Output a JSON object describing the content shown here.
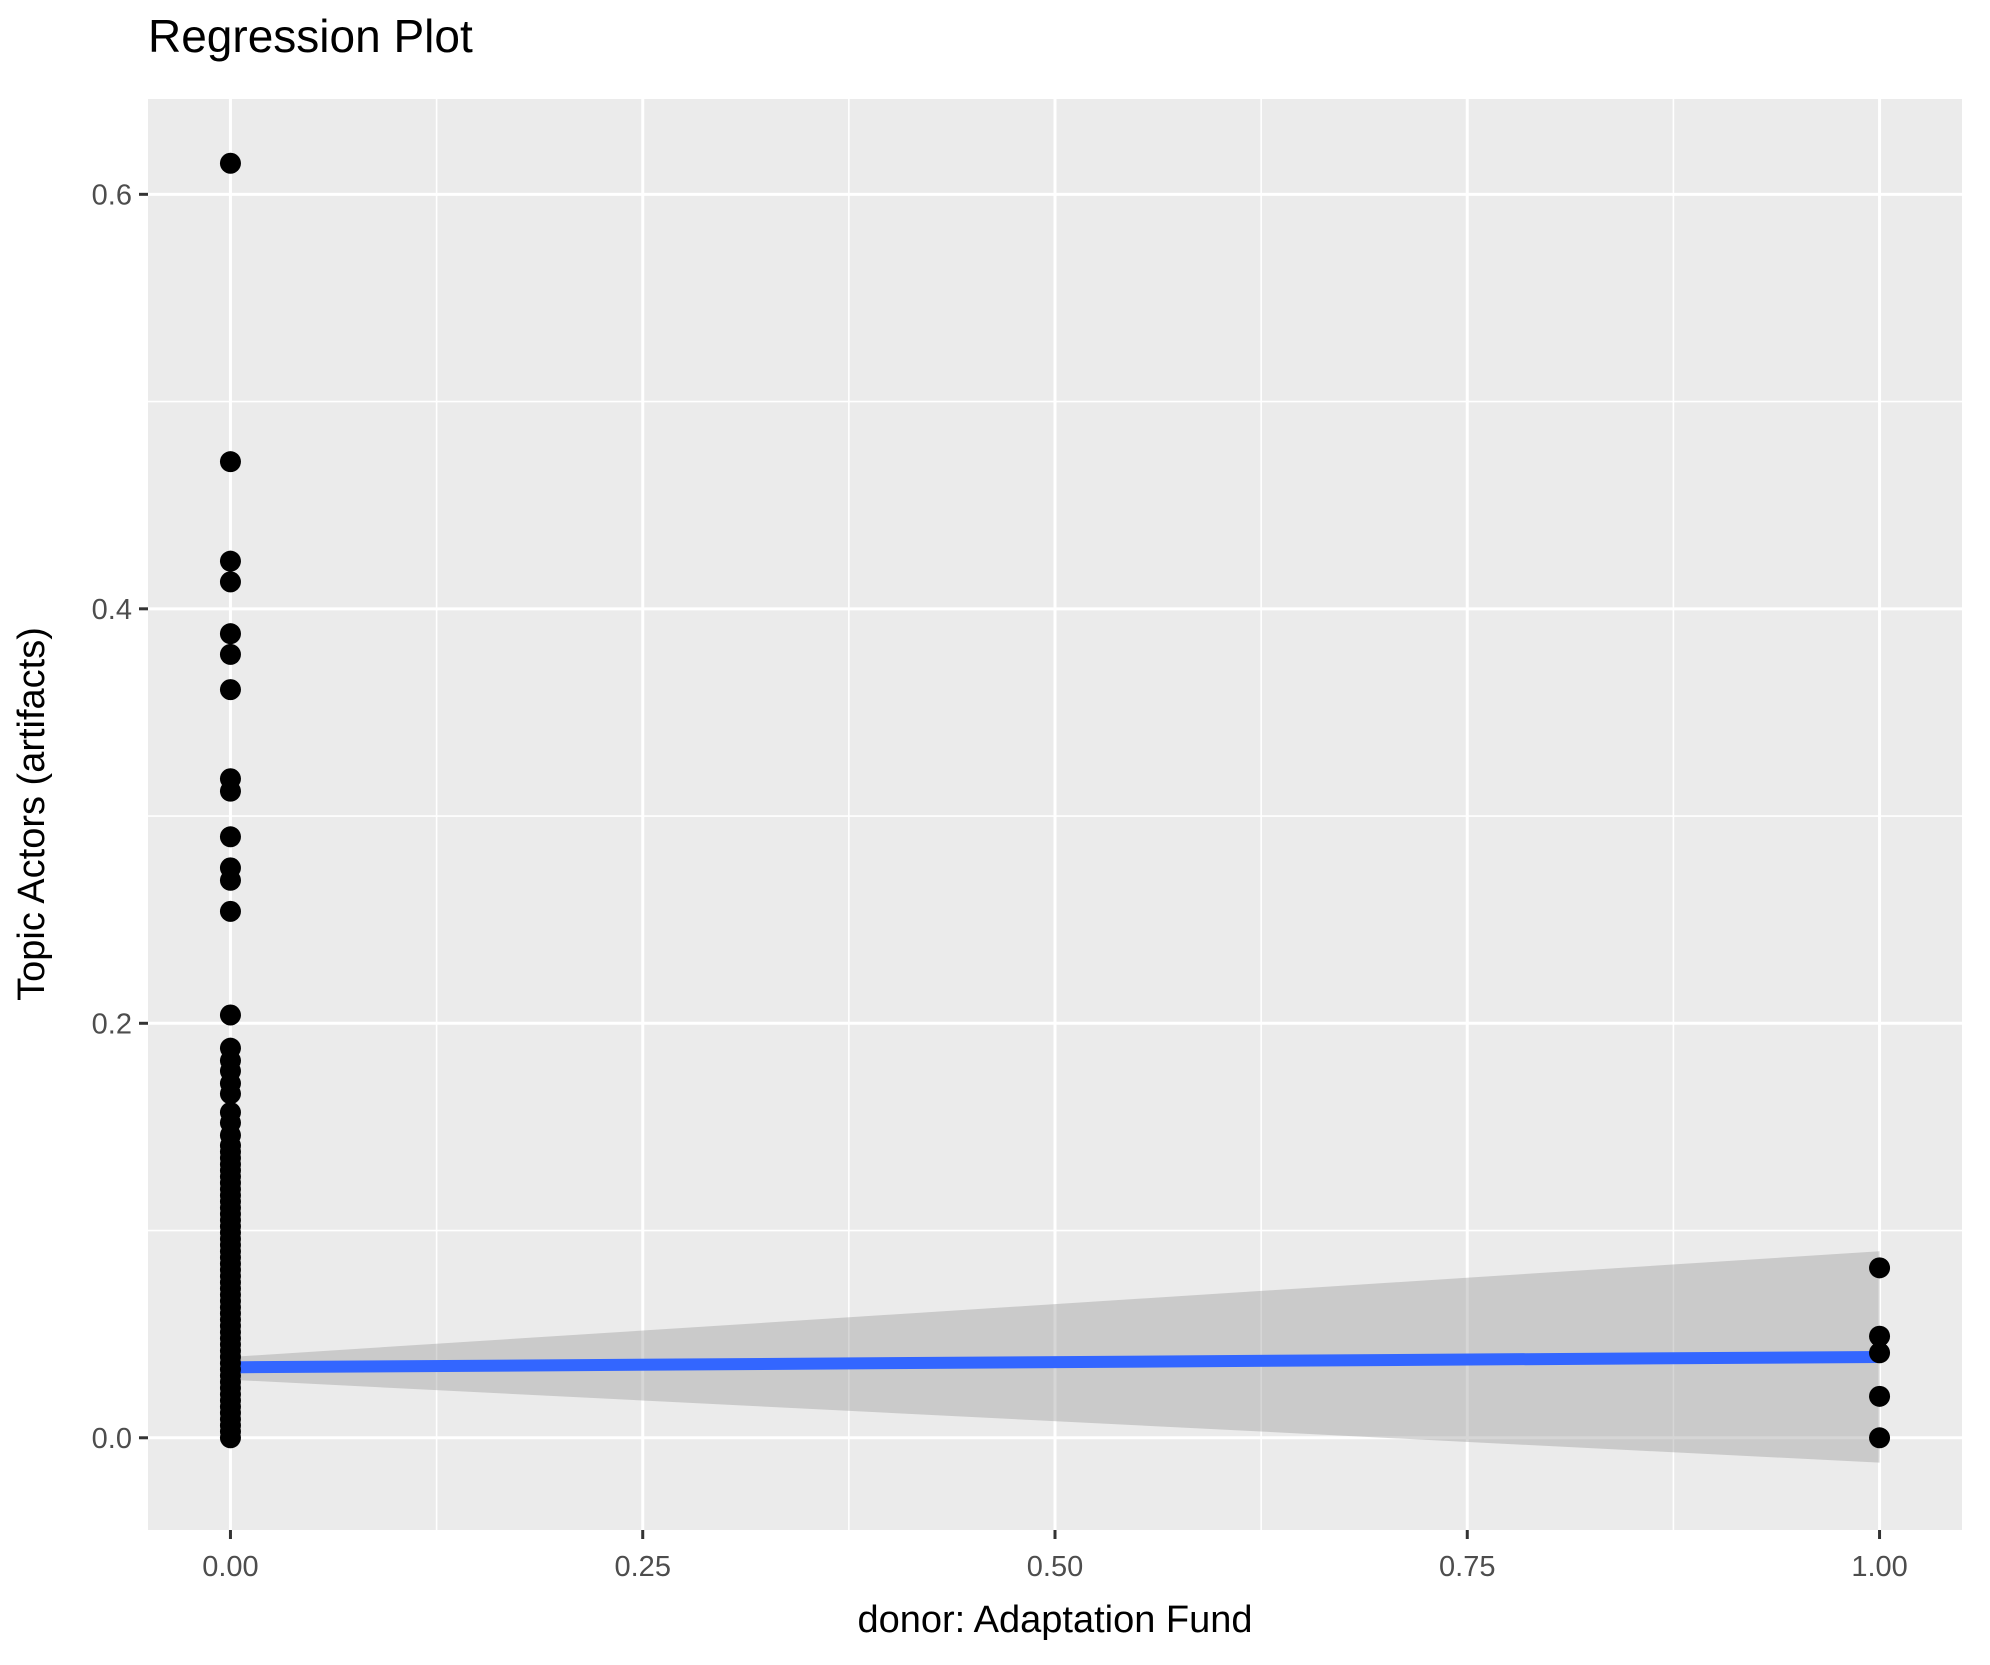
{
  "chart_data": {
    "type": "scatter",
    "title": "Regression Plot",
    "xlabel": "donor: Adaptation Fund",
    "ylabel": "Topic Actors (artifacts)",
    "xlim": [
      -0.05,
      1.05
    ],
    "ylim": [
      -0.0445,
      0.646
    ],
    "grid": true,
    "legend": false,
    "x_ticks": {
      "values": [
        0,
        0.25,
        0.5,
        0.75,
        1.0
      ],
      "labels": [
        "0.00",
        "0.25",
        "0.50",
        "0.75",
        "1.00"
      ]
    },
    "y_ticks": {
      "values": [
        0.0,
        0.2,
        0.4,
        0.6
      ],
      "labels": [
        "0.0",
        "0.2",
        "0.4",
        "0.6"
      ]
    },
    "x_minor_breaks": [
      0.125,
      0.375,
      0.625,
      0.875
    ],
    "y_minor_breaks": [
      0.1,
      0.3,
      0.5
    ],
    "series": [
      {
        "name": "donor = 0",
        "x": 0,
        "y": [
          0.615,
          0.471,
          0.423,
          0.413,
          0.388,
          0.378,
          0.361,
          0.318,
          0.312,
          0.29,
          0.275,
          0.269,
          0.254,
          0.204,
          0.188,
          0.182,
          0.177,
          0.171,
          0.166,
          0.157,
          0.152,
          0.146,
          0.141,
          0.138,
          0.135,
          0.132,
          0.129,
          0.126,
          0.123,
          0.12,
          0.117,
          0.114,
          0.111,
          0.108,
          0.105,
          0.102,
          0.099,
          0.096,
          0.093,
          0.09,
          0.087,
          0.084,
          0.081,
          0.078,
          0.075,
          0.072,
          0.069,
          0.066,
          0.063,
          0.06,
          0.057,
          0.054,
          0.051,
          0.048,
          0.045,
          0.042,
          0.039,
          0.036,
          0.033,
          0.03,
          0.027,
          0.024,
          0.021,
          0.018,
          0.015,
          0.012,
          0.009,
          0.006,
          0.003,
          0.0
        ]
      },
      {
        "name": "donor = 1",
        "x": 1,
        "y": [
          0.082,
          0.049,
          0.041,
          0.02,
          0.0
        ]
      }
    ],
    "regression_line": {
      "x": [
        0,
        1
      ],
      "y": [
        0.034,
        0.039
      ]
    },
    "confidence_band": [
      [
        0,
        0.039
      ],
      [
        1,
        0.09
      ],
      [
        1,
        -0.012
      ],
      [
        0,
        0.028
      ]
    ],
    "colors": {
      "point": "#000000",
      "line": "#3366FF",
      "band": "#999999",
      "band_opacity": 0.4,
      "panel_background": "#EBEBEB",
      "gridline": "#FFFFFF",
      "tick_mark": "#333333",
      "tick_label": "#4D4D4D"
    }
  }
}
